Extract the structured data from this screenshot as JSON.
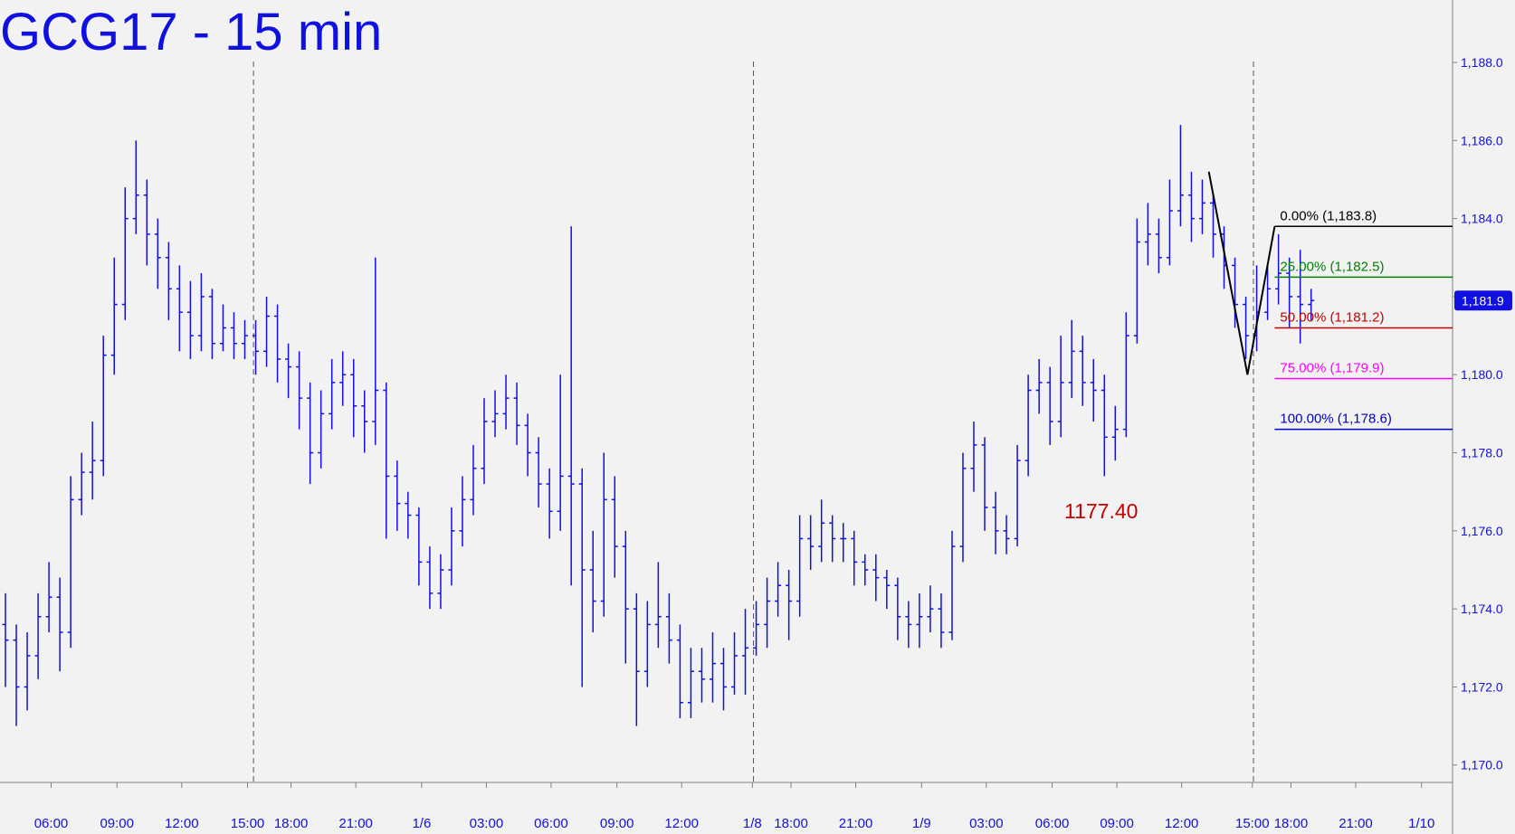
{
  "chart_data": {
    "type": "ohlc",
    "title": "GCG17 - 15 min",
    "color": "#1010e0",
    "x": [
      1,
      3,
      5,
      7,
      9,
      11,
      13,
      15,
      17,
      19,
      21,
      23,
      25,
      27,
      29,
      31,
      33,
      35,
      37,
      39,
      41,
      43,
      45,
      47,
      49,
      51,
      53,
      55,
      57,
      59,
      61,
      63,
      65,
      67,
      69,
      71,
      73,
      75,
      77,
      79,
      81,
      83,
      85,
      87,
      89,
      91,
      93,
      95,
      97,
      99,
      101,
      103,
      105,
      107,
      109,
      111,
      113,
      115,
      117,
      119,
      121,
      123,
      125,
      127,
      129,
      131,
      133,
      135,
      137,
      139,
      141,
      143,
      145,
      147,
      149,
      151,
      153,
      155,
      157,
      159,
      161,
      163,
      165,
      167,
      169,
      171,
      173,
      175,
      177,
      179,
      181,
      183,
      185,
      187,
      189,
      191,
      193,
      195,
      197,
      199,
      201,
      203,
      205,
      207,
      209,
      211,
      213,
      215,
      217,
      219,
      221,
      223,
      225,
      227,
      229,
      231,
      233,
      235,
      237,
      239,
      241
    ],
    "open": [
      1173.6,
      1173.2,
      1172.0,
      1172.8,
      1173.8,
      1174.3,
      1173.4,
      1176.8,
      1177.5,
      1177.8,
      1180.5,
      1181.8,
      1184.0,
      1184.6,
      1183.6,
      1183.0,
      1182.2,
      1181.6,
      1181.0,
      1182.0,
      1180.8,
      1181.2,
      1180.8,
      1181.0,
      1180.6,
      1181.5,
      1180.4,
      1180.2,
      1179.4,
      1178.0,
      1179.0,
      1179.8,
      1180.0,
      1179.2,
      1178.8,
      1179.6,
      1177.4,
      1176.7,
      1176.4,
      1175.2,
      1174.4,
      1175.0,
      1176.0,
      1176.8,
      1177.6,
      1178.8,
      1179.0,
      1179.4,
      1178.7,
      1178.0,
      1177.2,
      1176.5,
      1177.4,
      1177.2,
      1175.0,
      1174.2,
      1176.8,
      1175.6,
      1174.0,
      1172.4,
      1173.6,
      1173.8,
      1173.2,
      1171.6,
      1172.4,
      1172.2,
      1172.6,
      1172.0,
      1172.8,
      1173.0,
      1173.6,
      1174.2,
      1174.6,
      1174.2,
      1175.8,
      1175.6,
      1176.2,
      1175.8,
      1175.8,
      1175.2,
      1175.0,
      1174.8,
      1174.6,
      1173.8,
      1173.6,
      1173.8,
      1174.0,
      1173.4,
      1175.6,
      1177.6,
      1178.2,
      1176.6,
      1176.0,
      1175.8,
      1177.8,
      1179.6,
      1179.8,
      1178.8,
      1179.8,
      1180.6,
      1179.8,
      1179.6,
      1178.4,
      1178.6,
      1181.0,
      1183.4,
      1183.6,
      1183.0,
      1184.2,
      1184.6,
      1184.0,
      1184.4,
      1183.6,
      1182.8,
      1181.8,
      1181.0,
      1181.6,
      1182.2,
      1182.6,
      1182.0,
      1181.8
    ],
    "high": [
      1174.4,
      1173.6,
      1173.4,
      1174.4,
      1175.2,
      1174.8,
      1177.4,
      1178.0,
      1178.8,
      1181.0,
      1183.0,
      1184.8,
      1186.0,
      1185.0,
      1184.0,
      1183.4,
      1182.8,
      1182.4,
      1182.6,
      1182.2,
      1181.8,
      1181.6,
      1181.4,
      1181.4,
      1182.0,
      1181.8,
      1180.8,
      1180.6,
      1179.8,
      1179.6,
      1180.4,
      1180.6,
      1180.4,
      1179.6,
      1183.0,
      1179.8,
      1177.8,
      1177.0,
      1176.6,
      1175.6,
      1175.4,
      1176.6,
      1177.4,
      1178.2,
      1179.4,
      1179.6,
      1180.0,
      1179.8,
      1179.0,
      1178.4,
      1177.6,
      1180.0,
      1183.8,
      1177.6,
      1176.0,
      1178.0,
      1177.4,
      1176.0,
      1174.4,
      1174.2,
      1175.2,
      1174.4,
      1173.6,
      1173.0,
      1173.0,
      1173.4,
      1173.0,
      1173.4,
      1174.0,
      1174.2,
      1174.8,
      1175.2,
      1175.0,
      1176.4,
      1176.4,
      1176.8,
      1176.4,
      1176.2,
      1176.0,
      1175.4,
      1175.4,
      1175.0,
      1174.8,
      1174.2,
      1174.4,
      1174.6,
      1174.4,
      1176.0,
      1178.0,
      1178.8,
      1178.4,
      1177.0,
      1176.4,
      1178.2,
      1180.0,
      1180.4,
      1180.2,
      1181.0,
      1181.4,
      1181.0,
      1180.4,
      1180.0,
      1179.2,
      1181.6,
      1184.0,
      1184.4,
      1184.0,
      1185.0,
      1186.4,
      1185.2,
      1185.0,
      1184.6,
      1183.8,
      1183.0,
      1182.0,
      1182.8,
      1182.8,
      1183.6,
      1183.0,
      1183.2,
      1182.2
    ],
    "low": [
      1172.0,
      1171.0,
      1171.4,
      1172.2,
      1173.4,
      1172.4,
      1173.0,
      1176.4,
      1176.8,
      1177.4,
      1180.0,
      1181.4,
      1183.6,
      1182.8,
      1182.2,
      1181.4,
      1180.6,
      1180.4,
      1180.6,
      1180.4,
      1180.6,
      1180.4,
      1180.4,
      1180.0,
      1180.2,
      1179.8,
      1179.4,
      1178.6,
      1177.2,
      1177.6,
      1178.6,
      1179.2,
      1178.4,
      1178.0,
      1178.2,
      1175.8,
      1176.0,
      1175.8,
      1174.6,
      1174.0,
      1174.0,
      1174.6,
      1175.6,
      1176.4,
      1177.2,
      1178.4,
      1178.6,
      1178.2,
      1177.4,
      1176.6,
      1175.8,
      1176.0,
      1174.6,
      1172.0,
      1173.4,
      1173.8,
      1174.8,
      1172.6,
      1171.0,
      1172.0,
      1173.0,
      1172.6,
      1171.2,
      1171.2,
      1171.6,
      1171.6,
      1171.4,
      1171.8,
      1171.8,
      1172.8,
      1173.0,
      1173.8,
      1173.2,
      1173.8,
      1175.0,
      1175.2,
      1175.2,
      1175.2,
      1174.6,
      1174.6,
      1174.2,
      1174.0,
      1173.2,
      1173.0,
      1173.0,
      1173.4,
      1173.0,
      1173.2,
      1175.2,
      1177.0,
      1176.0,
      1175.4,
      1175.4,
      1175.6,
      1177.4,
      1179.0,
      1178.2,
      1178.4,
      1179.4,
      1179.2,
      1178.8,
      1177.4,
      1177.8,
      1178.4,
      1180.8,
      1182.8,
      1182.6,
      1182.8,
      1183.8,
      1183.4,
      1183.6,
      1183.0,
      1182.2,
      1181.2,
      1180.4,
      1180.6,
      1181.4,
      1181.8,
      1181.2,
      1180.8,
      1181.4
    ],
    "close": [
      1173.2,
      1172.0,
      1172.8,
      1173.8,
      1174.3,
      1173.4,
      1176.8,
      1177.5,
      1177.8,
      1180.5,
      1181.8,
      1184.0,
      1184.6,
      1183.6,
      1183.0,
      1182.2,
      1181.6,
      1181.0,
      1182.0,
      1180.8,
      1181.2,
      1180.8,
      1181.0,
      1180.6,
      1181.5,
      1180.4,
      1180.2,
      1179.4,
      1178.0,
      1179.0,
      1179.8,
      1180.0,
      1179.2,
      1178.8,
      1179.6,
      1177.4,
      1176.7,
      1176.4,
      1175.2,
      1174.4,
      1175.0,
      1176.0,
      1176.8,
      1177.6,
      1178.8,
      1179.0,
      1179.4,
      1178.7,
      1178.0,
      1177.2,
      1176.5,
      1177.4,
      1177.2,
      1175.0,
      1174.2,
      1176.8,
      1175.6,
      1174.0,
      1172.4,
      1173.6,
      1173.8,
      1173.2,
      1171.6,
      1172.4,
      1172.2,
      1172.6,
      1172.0,
      1172.8,
      1173.0,
      1173.6,
      1174.2,
      1174.6,
      1174.2,
      1175.8,
      1175.6,
      1176.2,
      1175.8,
      1175.8,
      1175.2,
      1175.0,
      1174.8,
      1174.6,
      1173.8,
      1173.6,
      1173.8,
      1174.0,
      1173.4,
      1175.6,
      1177.6,
      1178.2,
      1176.6,
      1176.0,
      1175.8,
      1177.8,
      1179.6,
      1179.8,
      1178.8,
      1179.8,
      1180.6,
      1179.8,
      1179.6,
      1178.4,
      1178.6,
      1181.0,
      1183.4,
      1183.6,
      1183.0,
      1184.2,
      1184.6,
      1184.0,
      1184.4,
      1183.6,
      1182.8,
      1181.8,
      1181.0,
      1181.6,
      1182.2,
      1182.6,
      1182.0,
      1181.8,
      1181.9
    ],
    "xlim": [
      0,
      267
    ],
    "xticks": [
      {
        "value": 9.4,
        "label": "06:00"
      },
      {
        "value": 21.5,
        "label": "09:00"
      },
      {
        "value": 33.4,
        "label": "12:00"
      },
      {
        "value": 45.5,
        "label": "15:00"
      },
      {
        "value": 53.5,
        "label": "18:00"
      },
      {
        "value": 65.4,
        "label": "21:00"
      },
      {
        "value": 77.5,
        "label": "1/6"
      },
      {
        "value": 89.4,
        "label": "03:00"
      },
      {
        "value": 101.3,
        "label": "06:00"
      },
      {
        "value": 113.4,
        "label": "09:00"
      },
      {
        "value": 125.3,
        "label": "12:00"
      },
      {
        "value": 138.3,
        "label": "1/8"
      },
      {
        "value": 145.4,
        "label": "18:00"
      },
      {
        "value": 157.3,
        "label": "21:00"
      },
      {
        "value": 169.4,
        "label": "1/9"
      },
      {
        "value": 181.3,
        "label": "03:00"
      },
      {
        "value": 193.4,
        "label": "06:00"
      },
      {
        "value": 205.3,
        "label": "09:00"
      },
      {
        "value": 217.2,
        "label": "12:00"
      },
      {
        "value": 230.2,
        "label": "15:00"
      },
      {
        "value": 237.3,
        "label": "18:00"
      },
      {
        "value": 249.2,
        "label": "21:00"
      },
      {
        "value": 261.3,
        "label": "1/10"
      }
    ],
    "ylim": [
      1169.6,
      1189.6
    ],
    "yticks": [
      {
        "value": 1170,
        "label": "1,170.0"
      },
      {
        "value": 1172,
        "label": "1,172.0"
      },
      {
        "value": 1174,
        "label": "1,174.0"
      },
      {
        "value": 1176,
        "label": "1,176.0"
      },
      {
        "value": 1178,
        "label": "1,178.0"
      },
      {
        "value": 1180,
        "label": "1,180.0"
      },
      {
        "value": 1182,
        "label": "1,182.0"
      },
      {
        "value": 1184,
        "label": "1,184.0"
      },
      {
        "value": 1186,
        "label": "1,186.0"
      },
      {
        "value": 1188,
        "label": "1,188.0"
      }
    ],
    "session_breaks": [
      46.6,
      138.5,
      230.4
    ],
    "last_price": {
      "value": 1181.9,
      "label": "1,181.9",
      "color": "#1010e0"
    },
    "zigzag": {
      "x": [
        222.2,
        229.3,
        234.3
      ],
      "values": [
        1185.2,
        1180.0,
        1183.8
      ],
      "color": "#000000"
    },
    "fib_levels": [
      {
        "label": "0.00% (1,183.8)",
        "value": 1183.8,
        "color": "#000000"
      },
      {
        "label": "25.00% (1,182.5)",
        "value": 1182.5,
        "color": "#008000"
      },
      {
        "label": "50.00% (1,181.2)",
        "value": 1181.2,
        "color": "#c00000"
      },
      {
        "label": "75.00% (1,179.9)",
        "value": 1179.9,
        "color": "#ff00ff"
      },
      {
        "label": "100.00% (1,178.6)",
        "value": 1178.6,
        "color": "#0000c0"
      }
    ],
    "annotations": [
      {
        "text": "1177.40",
        "color": "#c00000"
      }
    ]
  }
}
